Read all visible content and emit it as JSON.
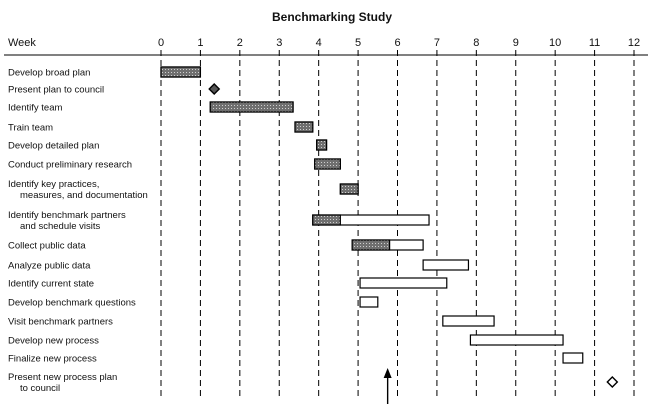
{
  "chart_data": {
    "type": "gantt",
    "title": "Benchmarking Study",
    "xlabel": "Week",
    "xlim": [
      0,
      12
    ],
    "x_ticks": [
      0,
      1,
      2,
      3,
      4,
      5,
      6,
      7,
      8,
      9,
      10,
      11,
      12
    ],
    "grid": "dashed vertical lines at each week",
    "colors": {
      "completed": "#6f6f6f",
      "remaining": "#ffffff",
      "outline": "#000000"
    },
    "current_week_marker": 5.75,
    "tasks": [
      {
        "label_lines": [
          "Develop broad plan"
        ],
        "start": 0.0,
        "end": 1.0,
        "done": 1.0,
        "type": "bar"
      },
      {
        "label_lines": [
          "Present plan to council"
        ],
        "at": 1.35,
        "type": "milestone",
        "filled": true
      },
      {
        "label_lines": [
          "Identify team"
        ],
        "start": 1.25,
        "end": 3.35,
        "done": 3.35,
        "type": "bar"
      },
      {
        "label_lines": [
          "Train team"
        ],
        "start": 3.4,
        "end": 3.85,
        "done": 3.85,
        "type": "bar"
      },
      {
        "label_lines": [
          "Develop detailed plan"
        ],
        "start": 3.95,
        "end": 4.2,
        "done": 4.2,
        "type": "bar"
      },
      {
        "label_lines": [
          "Conduct preliminary research"
        ],
        "start": 3.9,
        "end": 4.55,
        "done": 4.55,
        "type": "bar"
      },
      {
        "label_lines": [
          "Identify key practices,",
          "measures, and documentation"
        ],
        "start": 4.55,
        "end": 5.0,
        "done": 5.0,
        "type": "bar"
      },
      {
        "label_lines": [
          "Identify benchmark partners",
          "and schedule visits"
        ],
        "start": 3.85,
        "end": 6.8,
        "done": 4.55,
        "type": "bar"
      },
      {
        "label_lines": [
          "Collect public data"
        ],
        "start": 4.85,
        "end": 6.65,
        "done": 5.8,
        "type": "bar"
      },
      {
        "label_lines": [
          "Analyze public data"
        ],
        "start": 6.65,
        "end": 7.8,
        "done": 6.65,
        "type": "bar"
      },
      {
        "label_lines": [
          "Identify current state"
        ],
        "start": 5.05,
        "end": 7.25,
        "done": 5.05,
        "type": "bar"
      },
      {
        "label_lines": [
          "Develop benchmark questions"
        ],
        "start": 5.05,
        "end": 5.5,
        "done": 5.05,
        "type": "bar"
      },
      {
        "label_lines": [
          "Visit benchmark partners"
        ],
        "start": 7.15,
        "end": 8.45,
        "done": 7.15,
        "type": "bar"
      },
      {
        "label_lines": [
          "Develop new process"
        ],
        "start": 7.85,
        "end": 10.2,
        "done": 7.85,
        "type": "bar"
      },
      {
        "label_lines": [
          "Finalize new process"
        ],
        "start": 10.2,
        "end": 10.7,
        "done": 10.2,
        "type": "bar"
      },
      {
        "label_lines": [
          "Present new process plan",
          "to council"
        ],
        "at": 11.45,
        "type": "milestone",
        "filled": false
      }
    ]
  }
}
